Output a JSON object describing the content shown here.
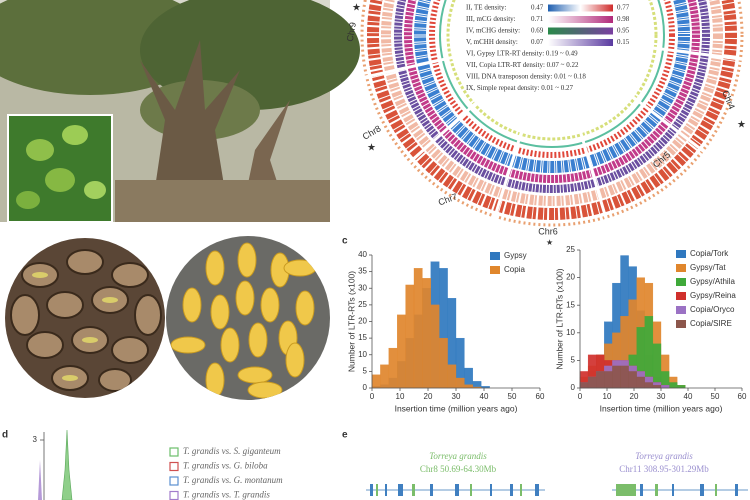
{
  "circos": {
    "legend": [
      {
        "label": "II, TE density:",
        "min": 0.47,
        "max": 0.77
      },
      {
        "label": "III, mCG density:",
        "min": 0.71,
        "max": 0.98
      },
      {
        "label": "IV, mCHG density:",
        "min": 0.69,
        "max": 0.95
      },
      {
        "label": "V, mCHH density:",
        "min": 0.07,
        "max": 0.15
      }
    ],
    "legend_text": [
      "VI, Gypsy LTR-RT density: 0.19 ~ 0.49",
      "VII, Copia LTR-RT density: 0.07 ~ 0.22",
      "VIII, DNA transposon density: 0.01 ~ 0.18",
      "IX, Simple repeat density: 0.01 ~ 0.27"
    ],
    "chromosomes": [
      "Chr9",
      "Chr4",
      "Chr8",
      "Chr5",
      "Chr7",
      "Chr6"
    ]
  },
  "panel_c": {
    "label": "c"
  },
  "chart_data": [
    {
      "type": "histogram",
      "ylabel": "Number of LTR-RTs (x100)",
      "xlabel": "Insertion time (million years ago)",
      "bins": [
        0,
        3,
        6,
        9,
        12,
        15,
        18,
        21,
        24,
        27,
        30,
        33,
        36,
        39,
        42,
        45,
        48
      ],
      "series": [
        {
          "name": "Gypsy",
          "color": "#2f78bf",
          "values": [
            0.5,
            1,
            3,
            8,
            15,
            22,
            30,
            38,
            36,
            27,
            15,
            6,
            2,
            0.5,
            0,
            0
          ]
        },
        {
          "name": "Copia",
          "color": "#e0862c",
          "values": [
            4,
            7,
            12,
            22,
            31,
            36,
            33,
            25,
            15,
            7,
            3,
            1,
            0.3,
            0,
            0,
            0
          ]
        }
      ],
      "xlim": [
        0,
        60
      ],
      "xticks": [
        0,
        10,
        20,
        30,
        40,
        50,
        60
      ],
      "ylim": [
        0,
        40
      ],
      "yticks": [
        0,
        5,
        10,
        15,
        20,
        25,
        30,
        35,
        40
      ]
    },
    {
      "type": "histogram",
      "ylabel": "Number of LTR-RTs (x100)",
      "xlabel": "Insertion time (million years ago)",
      "bins": [
        0,
        3,
        6,
        9,
        12,
        15,
        18,
        21,
        24,
        27,
        30,
        33,
        36,
        39,
        42,
        45,
        48
      ],
      "series": [
        {
          "name": "Copia/Tork",
          "color": "#2f78bf",
          "values": [
            1,
            3,
            6,
            12,
            19,
            24,
            22,
            14,
            6,
            2,
            0.5,
            0,
            0,
            0,
            0,
            0
          ]
        },
        {
          "name": "Gypsy/Tat",
          "color": "#e0862c",
          "values": [
            2,
            4,
            6,
            8,
            10,
            13,
            16,
            20,
            19,
            12,
            6,
            2,
            0.5,
            0,
            0,
            0
          ]
        },
        {
          "name": "Gypsy/Athila",
          "color": "#3fa93a",
          "values": [
            0.5,
            1,
            2,
            3,
            3,
            3,
            6,
            11,
            13,
            8,
            3,
            1,
            0.5,
            0,
            0,
            0
          ]
        },
        {
          "name": "Gypsy/Reina",
          "color": "#d0302c",
          "values": [
            3,
            6,
            6,
            5,
            5,
            5,
            4,
            3,
            2,
            1,
            0.5,
            0,
            0,
            0,
            0,
            0
          ]
        },
        {
          "name": "Copia/Oryco",
          "color": "#9b72c4",
          "values": [
            1,
            2,
            3,
            4,
            5,
            5,
            4,
            3,
            2,
            1,
            0.5,
            0,
            0,
            0,
            0,
            0
          ]
        },
        {
          "name": "Copia/SIRE",
          "color": "#8c564b",
          "values": [
            1,
            2,
            3,
            3,
            4,
            4,
            3,
            2,
            1,
            0.5,
            0,
            0,
            0,
            0,
            0,
            0
          ]
        }
      ],
      "xlim": [
        0,
        60
      ],
      "xticks": [
        0,
        10,
        20,
        30,
        40,
        50,
        60
      ],
      "ylim": [
        0,
        25
      ],
      "yticks": [
        0,
        5,
        10,
        15,
        20,
        25
      ]
    }
  ],
  "panel_d": {
    "label": "d",
    "ytick": 3,
    "legend": [
      "T. grandis vs. S. giganteum",
      "T. grandis vs. G. biloba",
      "T. grandis vs. G. montanum",
      "T. grandis vs. T. grandis"
    ]
  },
  "panel_e": {
    "label": "e",
    "left": {
      "species": "Torreya grandis",
      "region": "Chr8 50.69-64.30Mb"
    },
    "right": {
      "species": "Torreya grandis",
      "region": "Chr11 308.95-301.29Mb"
    }
  }
}
